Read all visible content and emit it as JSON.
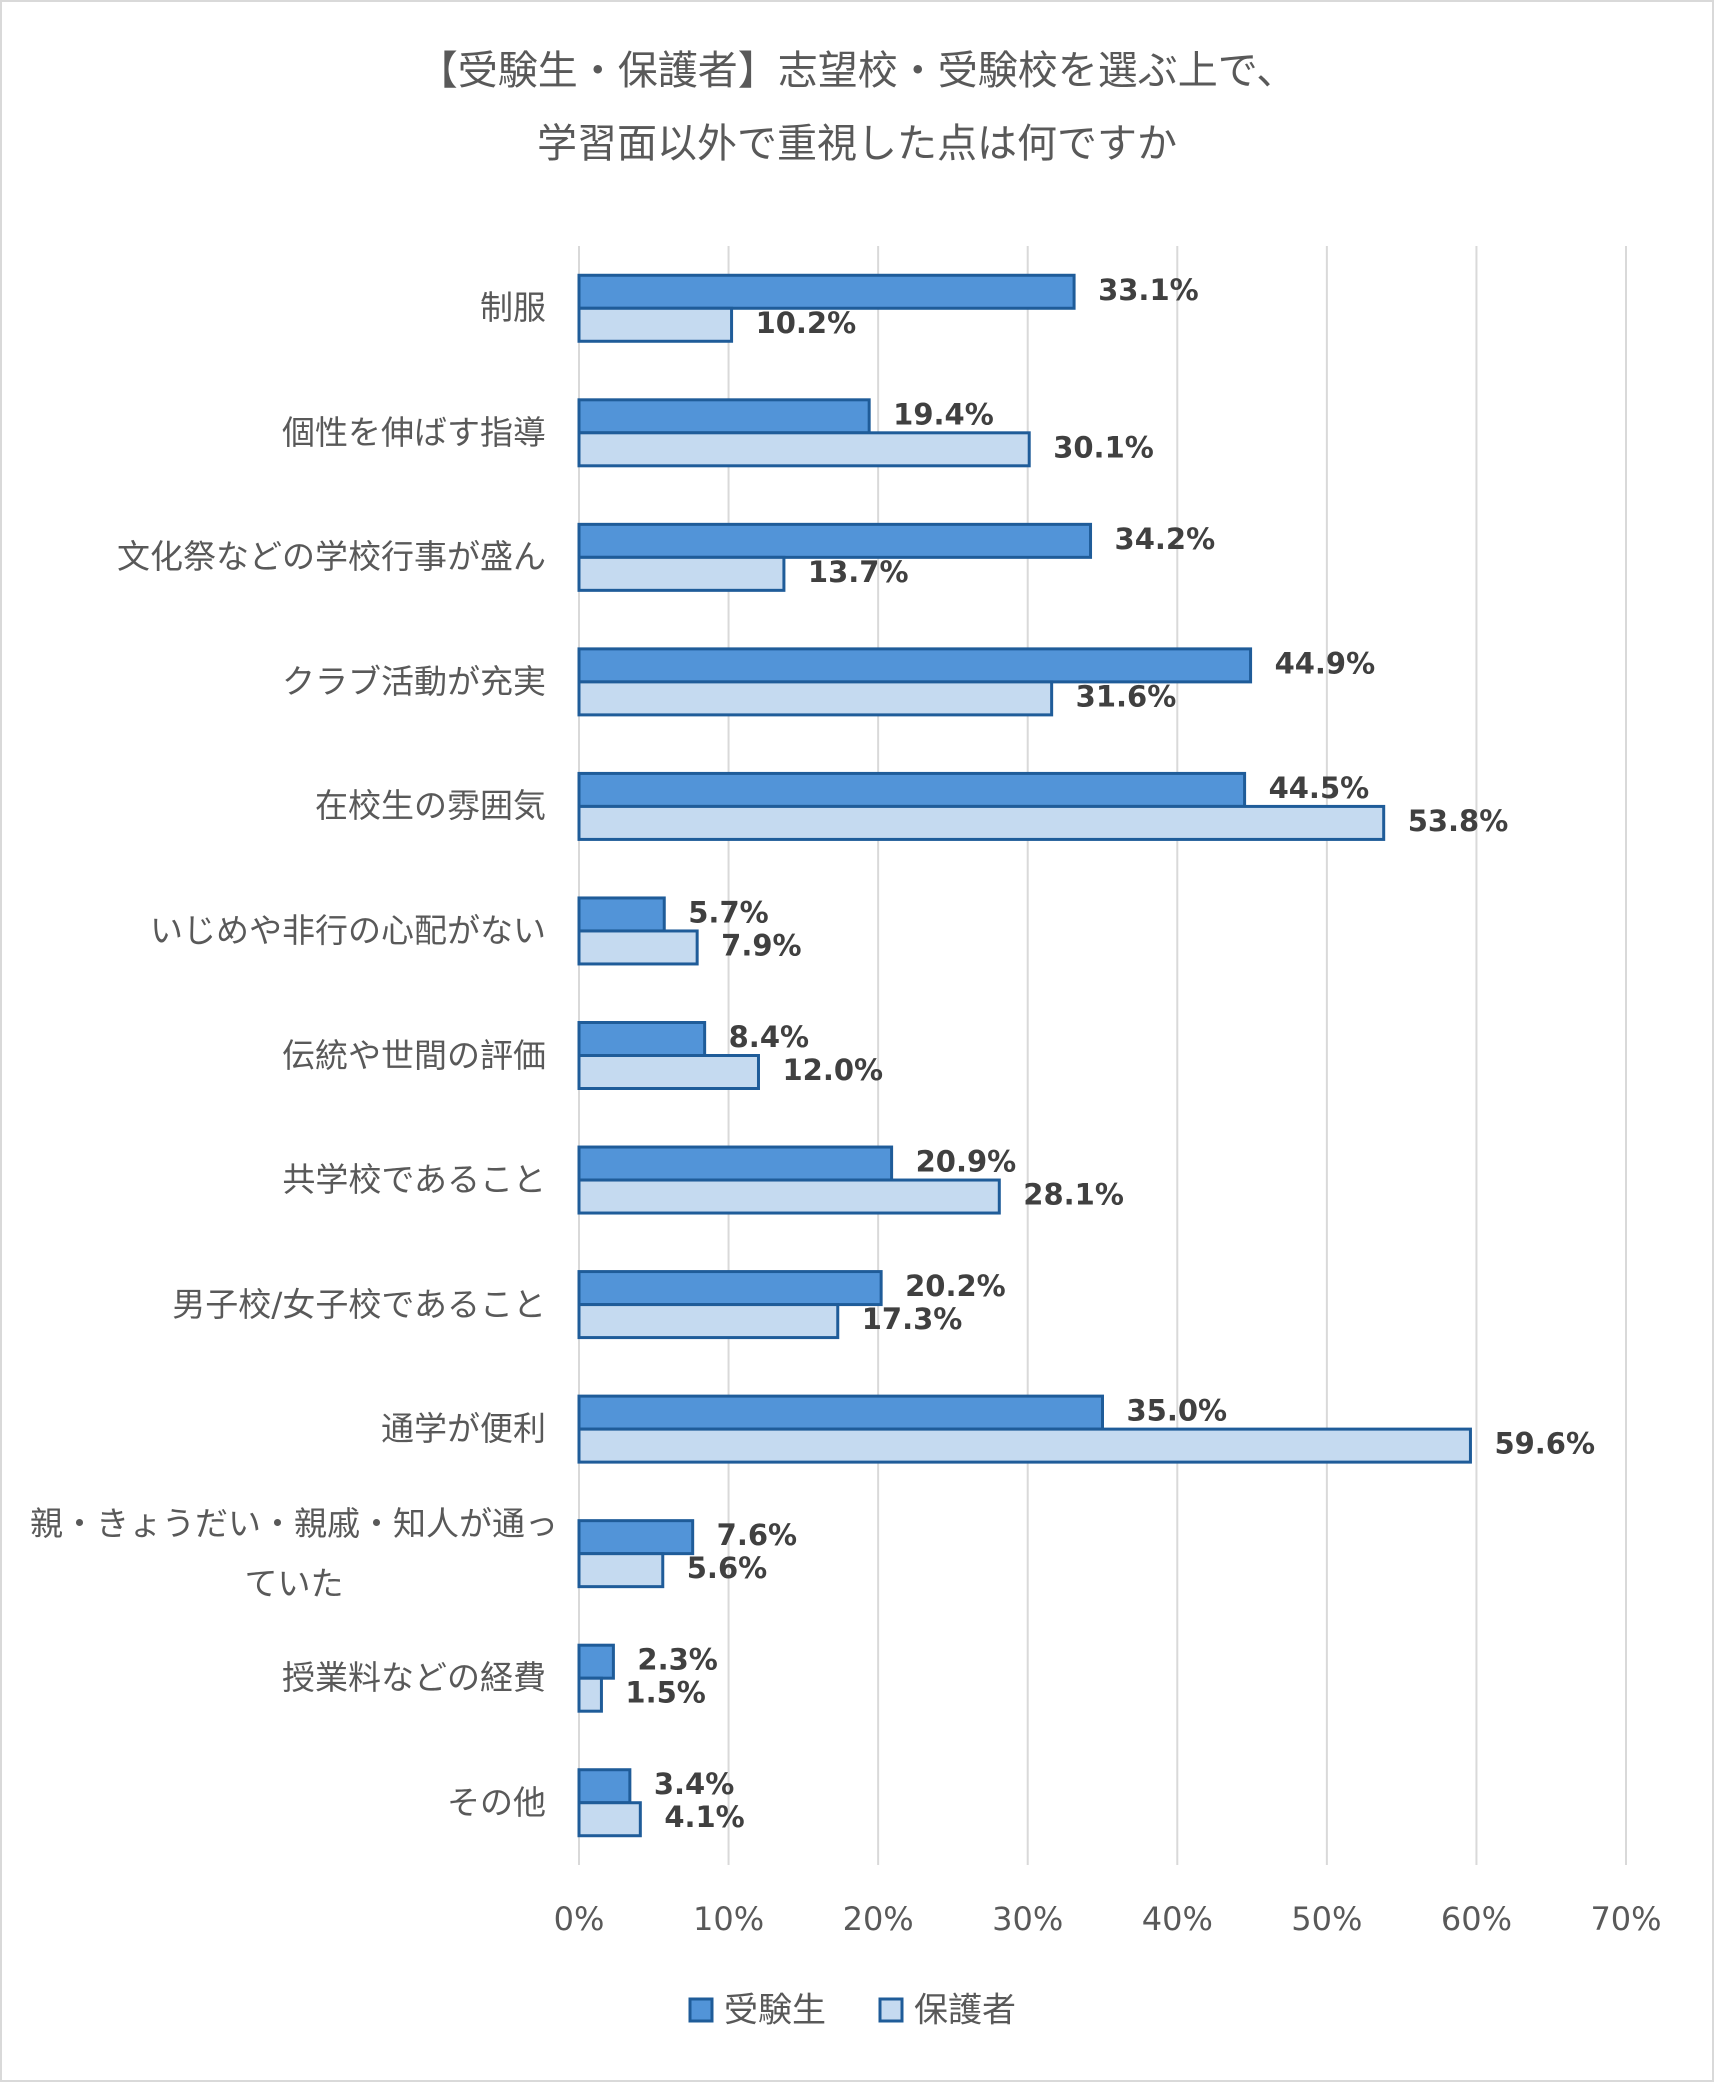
{
  "chart_data": {
    "type": "bar",
    "orientation": "horizontal",
    "title": [
      "【受験生・保護者】志望校・受験校を選ぶ上で、",
      "学習面以外で重視した点は何ですか"
    ],
    "categories": [
      "制服",
      "個性を伸ばす指導",
      "文化祭などの学校行事が盛ん",
      "クラブ活動が充実",
      "在校生の雰囲気",
      "いじめや非行の心配がない",
      "伝統や世間の評価",
      "共学校であること",
      "男子校/女子校であること",
      "通学が便利",
      "親・きょうだい・親戚・知人が通っていた",
      "授業料などの経費",
      "その他"
    ],
    "series": [
      {
        "name": "受験生",
        "color": "#5294d8",
        "values": [
          33.1,
          19.4,
          34.2,
          44.9,
          44.5,
          5.7,
          8.4,
          20.9,
          20.2,
          35.0,
          7.6,
          2.3,
          3.4
        ],
        "value_labels": [
          "33.1%",
          "19.4%",
          "34.2%",
          "44.9%",
          "44.5%",
          "5.7%",
          "8.4%",
          "20.9%",
          "20.2%",
          "35.0%",
          "7.6%",
          "2.3%",
          "3.4%"
        ]
      },
      {
        "name": "保護者",
        "color": "#c5daf0",
        "values": [
          10.2,
          30.1,
          13.7,
          31.6,
          53.8,
          7.9,
          12.0,
          28.1,
          17.3,
          59.6,
          5.6,
          1.5,
          4.1
        ],
        "value_labels": [
          "10.2%",
          "30.1%",
          "13.7%",
          "31.6%",
          "53.8%",
          "7.9%",
          "12.0%",
          "28.1%",
          "17.3%",
          "59.6%",
          "5.6%",
          "1.5%",
          "4.1%"
        ]
      }
    ],
    "xlim": [
      0,
      70
    ],
    "xticks": [
      {
        "value": 0,
        "label": "0%"
      },
      {
        "value": 10,
        "label": "10%"
      },
      {
        "value": 20,
        "label": "20%"
      },
      {
        "value": 30,
        "label": "30%"
      },
      {
        "value": 40,
        "label": "40%"
      },
      {
        "value": 50,
        "label": "50%"
      },
      {
        "value": 60,
        "label": "60%"
      },
      {
        "value": 70,
        "label": "70%"
      }
    ],
    "grid": true,
    "legend": "bottom",
    "bar_edge_color": "#1f5c99"
  }
}
